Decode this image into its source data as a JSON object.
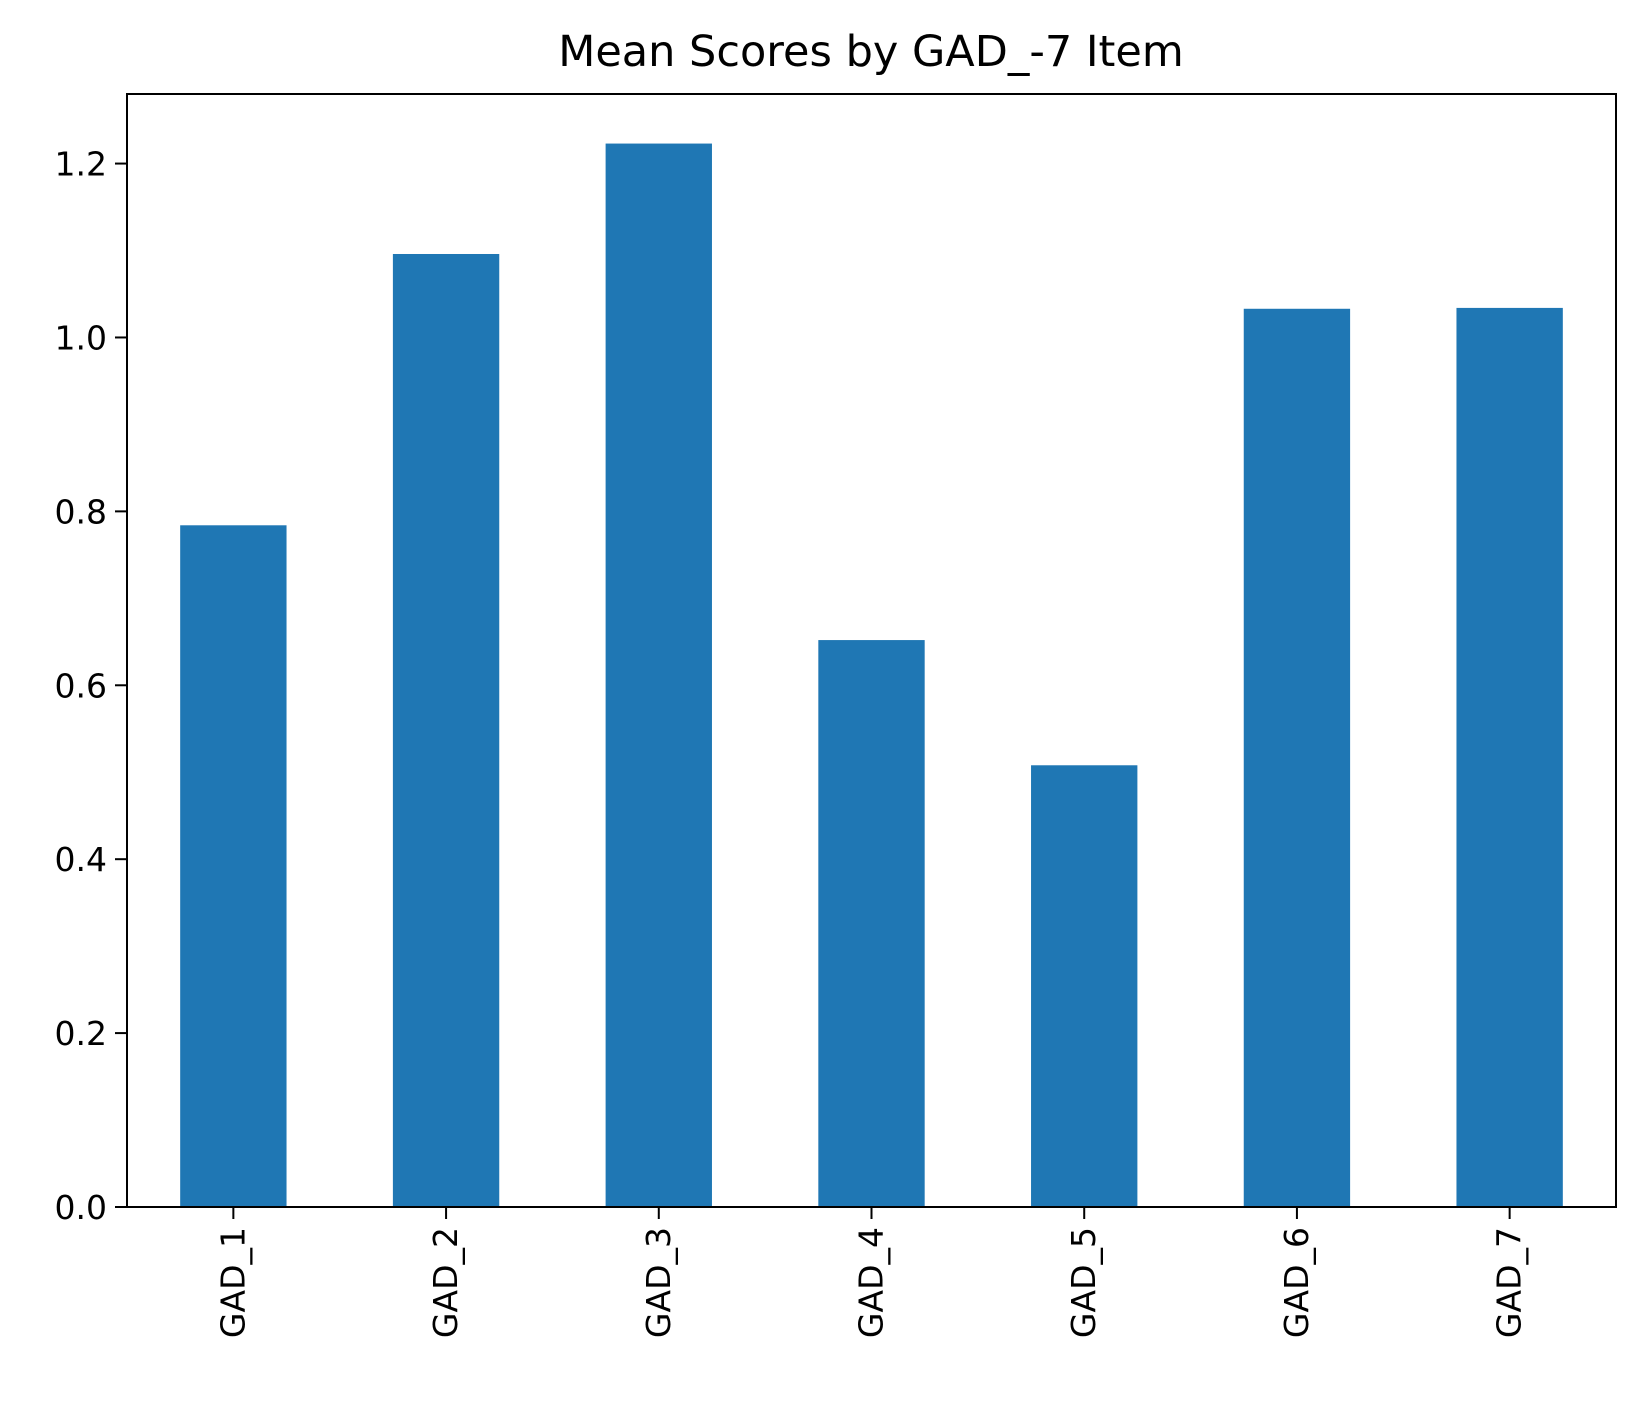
{
  "chart_data": {
    "type": "bar",
    "title": "Mean Scores by GAD_-7 Item",
    "xlabel": "",
    "ylabel": "",
    "categories": [
      "GAD_1",
      "GAD_2",
      "GAD_3",
      "GAD_4",
      "GAD_5",
      "GAD_6",
      "GAD_7"
    ],
    "values": [
      0.784,
      1.096,
      1.223,
      0.652,
      0.508,
      1.033,
      1.034
    ],
    "ylim": [
      0,
      1.28
    ],
    "yticks": [
      "0.0",
      "0.2",
      "0.4",
      "0.6",
      "0.8",
      "1.0",
      "1.2"
    ],
    "bar_color": "#1f77b4",
    "grid": false,
    "legend": "none"
  }
}
